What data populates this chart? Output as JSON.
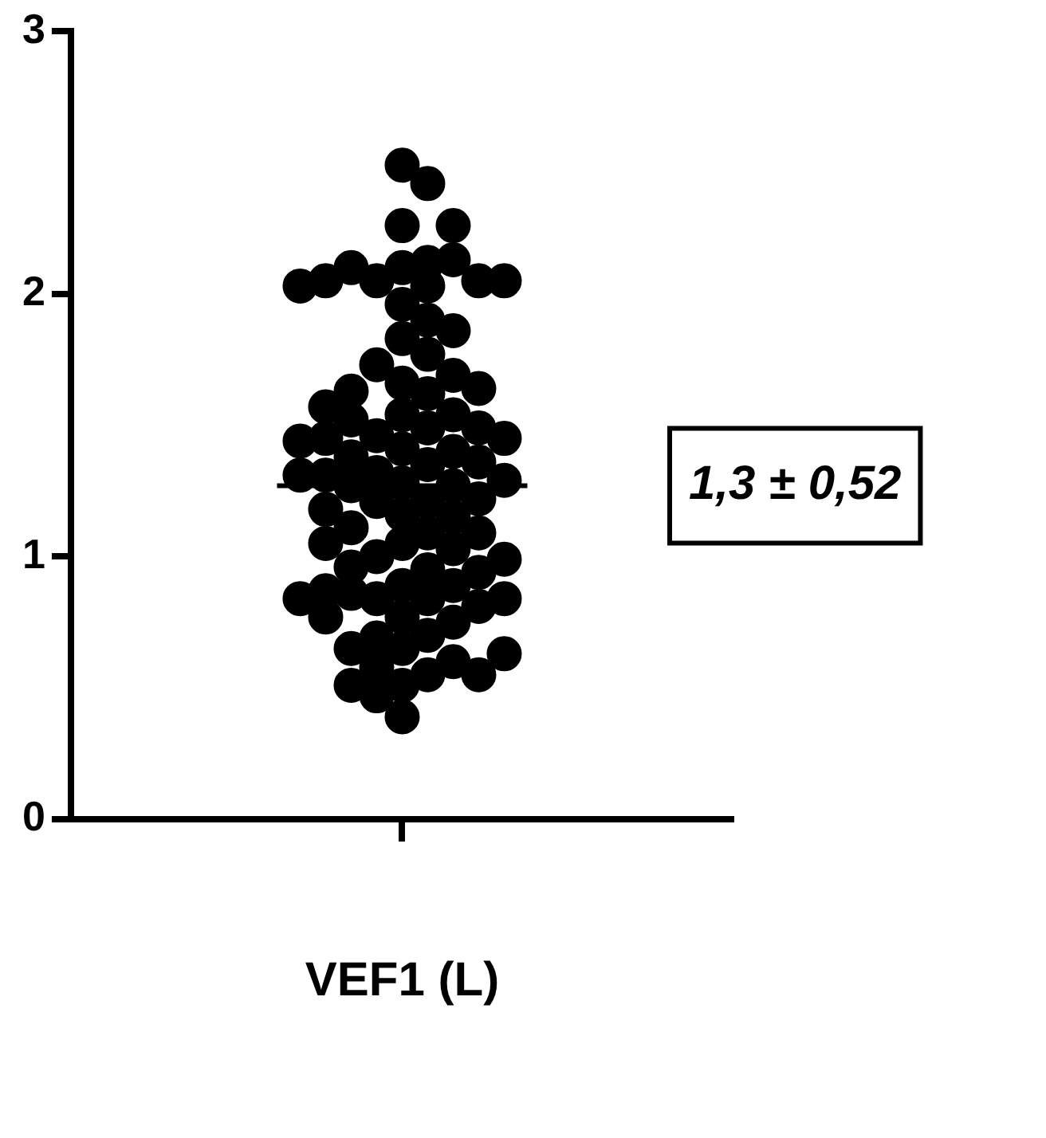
{
  "chart_data": {
    "type": "scatter",
    "categories": [
      "VEF1 (L)"
    ],
    "series": [
      {
        "color": "#000000",
        "x": [
          "VEF1 (L)",
          "VEF1 (L)",
          "VEF1 (L)",
          "VEF1 (L)",
          "VEF1 (L)",
          "VEF1 (L)",
          "VEF1 (L)",
          "VEF1 (L)",
          "VEF1 (L)",
          "VEF1 (L)",
          "VEF1 (L)",
          "VEF1 (L)",
          "VEF1 (L)",
          "VEF1 (L)",
          "VEF1 (L)",
          "VEF1 (L)",
          "VEF1 (L)",
          "VEF1 (L)",
          "VEF1 (L)",
          "VEF1 (L)",
          "VEF1 (L)",
          "VEF1 (L)",
          "VEF1 (L)",
          "VEF1 (L)",
          "VEF1 (L)",
          "VEF1 (L)",
          "VEF1 (L)",
          "VEF1 (L)",
          "VEF1 (L)",
          "VEF1 (L)",
          "VEF1 (L)",
          "VEF1 (L)",
          "VEF1 (L)",
          "VEF1 (L)",
          "VEF1 (L)",
          "VEF1 (L)",
          "VEF1 (L)",
          "VEF1 (L)",
          "VEF1 (L)",
          "VEF1 (L)",
          "VEF1 (L)",
          "VEF1 (L)",
          "VEF1 (L)",
          "VEF1 (L)",
          "VEF1 (L)",
          "VEF1 (L)",
          "VEF1 (L)",
          "VEF1 (L)",
          "VEF1 (L)",
          "VEF1 (L)",
          "VEF1 (L)",
          "VEF1 (L)",
          "VEF1 (L)",
          "VEF1 (L)",
          "VEF1 (L)",
          "VEF1 (L)",
          "VEF1 (L)",
          "VEF1 (L)",
          "VEF1 (L)",
          "VEF1 (L)",
          "VEF1 (L)",
          "VEF1 (L)",
          "VEF1 (L)",
          "VEF1 (L)",
          "VEF1 (L)",
          "VEF1 (L)",
          "VEF1 (L)",
          "VEF1 (L)",
          "VEF1 (L)",
          "VEF1 (L)",
          "VEF1 (L)",
          "VEF1 (L)",
          "VEF1 (L)",
          "VEF1 (L)",
          "VEF1 (L)",
          "VEF1 (L)",
          "VEF1 (L)",
          "VEF1 (L)",
          "VEF1 (L)",
          "VEF1 (L)",
          "VEF1 (L)",
          "VEF1 (L)",
          "VEF1 (L)",
          "VEF1 (L)",
          "VEF1 (L)",
          "VEF1 (L)",
          "VEF1 (L)",
          "VEF1 (L)",
          "VEF1 (L)"
        ],
        "values": [
          2.49,
          2.42,
          2.26,
          2.26,
          2.1,
          2.13,
          2.03,
          2.05,
          2.05,
          2.05,
          2.1,
          2.05,
          2.03,
          2.12,
          1.96,
          1.9,
          1.83,
          1.86,
          1.77,
          1.73,
          1.66,
          1.69,
          1.63,
          1.62,
          1.64,
          1.54,
          1.54,
          1.57,
          1.52,
          1.49,
          1.49,
          1.46,
          1.45,
          1.41,
          1.45,
          1.4,
          1.38,
          1.44,
          1.35,
          1.36,
          1.32,
          1.31,
          1.28,
          1.27,
          1.27,
          1.29,
          1.31,
          1.21,
          1.21,
          1.22,
          1.18,
          1.16,
          1.15,
          1.11,
          1.09,
          1.09,
          1.05,
          1.05,
          1.03,
          1.0,
          0.99,
          0.95,
          0.96,
          0.94,
          0.89,
          0.89,
          0.87,
          0.84,
          0.84,
          0.84,
          0.84,
          0.86,
          0.81,
          0.77,
          0.75,
          0.77,
          0.7,
          0.69,
          0.65,
          0.65,
          0.6,
          0.63,
          0.58,
          0.55,
          0.55,
          0.51,
          0.51,
          0.47,
          0.39
        ]
      }
    ],
    "ylim": [
      0,
      3
    ],
    "yticks": [
      0,
      1,
      2,
      3
    ],
    "ref_lines": [
      {
        "axis": "y",
        "value": 1.27,
        "label": "1,3 ± 0,52"
      }
    ],
    "marker": "circle",
    "grid": false,
    "legend": false
  }
}
